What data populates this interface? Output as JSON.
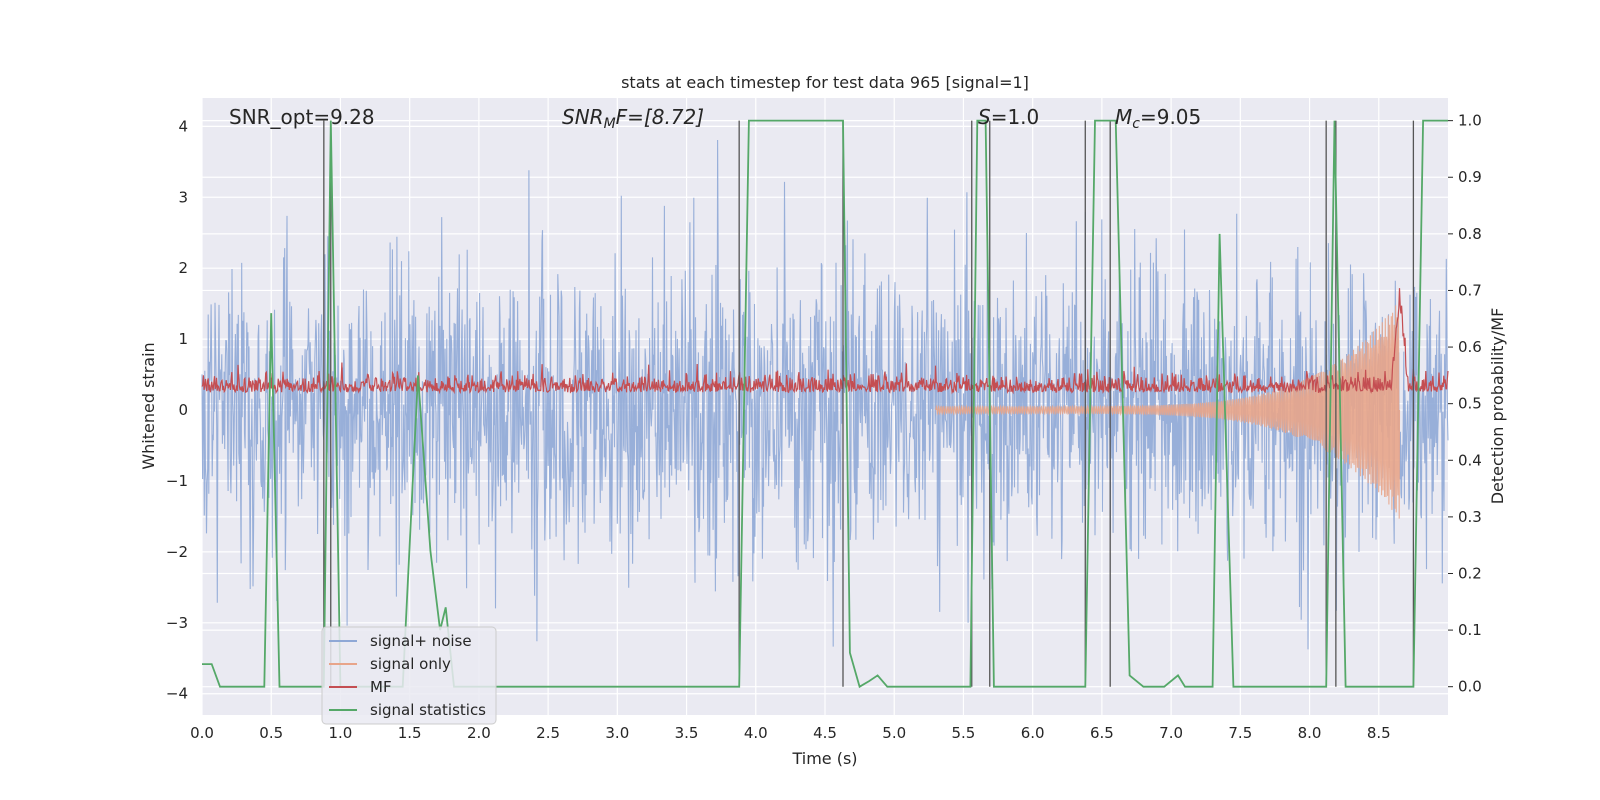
{
  "chart_data": {
    "type": "line",
    "title": "stats at each timestep for test data 965 [signal=1]",
    "xlabel": "Time (s)",
    "ylabel": "Whitened strain",
    "ylabel_right": "Detection probability/MF",
    "xlim": [
      0,
      9.0
    ],
    "ylim": [
      -4.3,
      4.4
    ],
    "ylim_right": [
      -0.05,
      1.04
    ],
    "x_ticks": [
      0,
      0.5,
      1,
      1.5,
      2,
      2.5,
      3,
      3.5,
      4,
      4.5,
      5,
      5.5,
      6,
      6.5,
      7,
      7.5,
      8,
      8.5
    ],
    "x_tick_labels": [
      "0.0",
      "0.5",
      "1.0",
      "1.5",
      "2.0",
      "2.5",
      "3.0",
      "3.5",
      "4.0",
      "4.5",
      "5.0",
      "5.5",
      "6.0",
      "6.5",
      "7.0",
      "7.5",
      "8.0",
      "8.5"
    ],
    "y_ticks": [
      -4,
      -3,
      -2,
      -1,
      0,
      1,
      2,
      3,
      4
    ],
    "y_tick_labels": [
      "−4",
      "−3",
      "−2",
      "−1",
      "0",
      "1",
      "2",
      "3",
      "4"
    ],
    "y_right_ticks": [
      0,
      0.1,
      0.2,
      0.3,
      0.4,
      0.5,
      0.6,
      0.7,
      0.8,
      0.9,
      1.0
    ],
    "y_right_tick_labels": [
      "0.0",
      "0.1",
      "0.2",
      "0.3",
      "0.4",
      "0.5",
      "0.6",
      "0.7",
      "0.8",
      "0.9",
      "1.0"
    ],
    "grid": true,
    "legend_position": "lower-left",
    "annotations": {
      "snr_opt": "SNR_opt=9.28",
      "snr_mf_base": "SNR",
      "snr_mf_sub": "M",
      "snr_mf_rest": "F=[8.72]",
      "s_label": "S",
      "s_rest": "=1.0",
      "mc_base": "M",
      "mc_sub": "c",
      "mc_rest": "=9.05"
    },
    "series": [
      {
        "name": "signal+ noise",
        "color": "#8fa8d6",
        "axis": "left",
        "sampled": true,
        "std": 1.0
      },
      {
        "name": "signal only",
        "color": "#e8a58a",
        "axis": "left",
        "chirp_start": 5.3,
        "chirp_end": 8.65,
        "peak_amplitude": 1.5
      },
      {
        "name": "MF",
        "color": "#c44e52",
        "axis": "right",
        "baseline": 0.52,
        "peak_time": 8.65,
        "peak_value": 0.68
      },
      {
        "name": "signal statistics",
        "color": "#55a868",
        "axis": "right",
        "x": [
          0.0,
          0.07,
          0.13,
          0.2,
          0.3,
          0.4,
          0.45,
          0.5,
          0.56,
          0.65,
          0.75,
          0.85,
          0.88,
          0.93,
          1.0,
          1.1,
          1.3,
          1.45,
          1.56,
          1.65,
          1.72,
          1.76,
          1.82,
          1.9,
          2.0,
          2.5,
          3.0,
          3.5,
          3.88,
          3.95,
          4.05,
          4.5,
          4.63,
          4.68,
          4.75,
          4.82,
          4.88,
          4.95,
          5.1,
          5.55,
          5.6,
          5.66,
          5.72,
          5.8,
          6.0,
          6.38,
          6.45,
          6.5,
          6.6,
          6.7,
          6.8,
          6.95,
          7.05,
          7.1,
          7.2,
          7.3,
          7.35,
          7.45,
          7.6,
          8.0,
          8.12,
          8.18,
          8.26,
          8.35,
          8.6,
          8.75,
          8.82,
          8.9,
          9.0
        ],
        "values": [
          0.04,
          0.04,
          0.0,
          0.0,
          0.0,
          0.0,
          0.0,
          0.66,
          0.0,
          0.0,
          0.0,
          0.0,
          0.0,
          1.0,
          0.0,
          0.0,
          0.0,
          0.0,
          0.55,
          0.24,
          0.1,
          0.14,
          0.0,
          0.0,
          0.0,
          0.0,
          0.0,
          0.0,
          0.0,
          1.0,
          1.0,
          1.0,
          1.0,
          0.06,
          0.0,
          0.01,
          0.02,
          0.0,
          0.0,
          0.0,
          1.0,
          1.0,
          0.0,
          0.0,
          0.0,
          0.0,
          1.0,
          1.0,
          1.0,
          0.02,
          0.0,
          0.0,
          0.02,
          0.0,
          0.0,
          0.0,
          0.8,
          0.0,
          0.0,
          0.0,
          0.0,
          1.0,
          0.0,
          0.0,
          0.0,
          0.0,
          1.0,
          1.0,
          1.0
        ]
      }
    ],
    "vertical_lines": [
      0.88,
      0.93,
      3.88,
      4.63,
      5.56,
      5.69,
      6.38,
      6.56,
      8.12,
      8.19,
      8.75
    ]
  }
}
